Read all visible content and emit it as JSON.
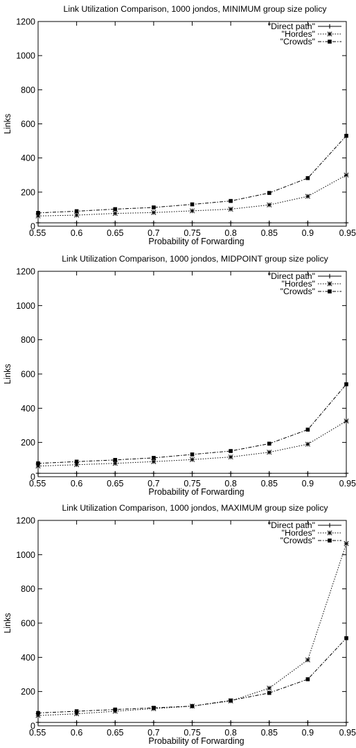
{
  "chart_data": [
    {
      "type": "line",
      "title": "Link Utilization Comparison, 1000 jondos, MINIMUM group size policy",
      "xlabel": "Probability of Forwarding",
      "ylabel": "Links",
      "x": [
        0.55,
        0.6,
        0.65,
        0.7,
        0.75,
        0.8,
        0.85,
        0.9,
        0.95
      ],
      "xlim": [
        0.55,
        0.95
      ],
      "ylim": [
        0,
        1200
      ],
      "xticks": [
        "0.55",
        "0.6",
        "0.65",
        "0.7",
        "0.75",
        "0.8",
        "0.85",
        "0.9",
        "0.95"
      ],
      "yticks": [
        "0",
        "200",
        "400",
        "600",
        "800",
        "1000",
        "1200"
      ],
      "legend_position": "top-right",
      "series": [
        {
          "name": "\"Direct path\"",
          "style": "solid",
          "marker": "plus",
          "values": [
            20,
            20,
            20,
            20,
            20,
            20,
            20,
            20,
            20
          ]
        },
        {
          "name": "\"Hordes\"",
          "style": "dotted",
          "marker": "cross",
          "values": [
            60,
            65,
            75,
            80,
            90,
            100,
            125,
            175,
            300
          ]
        },
        {
          "name": "\"Crowds\"",
          "style": "dashdot",
          "marker": "square",
          "values": [
            78,
            88,
            100,
            110,
            128,
            148,
            195,
            282,
            530
          ]
        }
      ]
    },
    {
      "type": "line",
      "title": "Link Utilization Comparison, 1000 jondos, MIDPOINT group size policy",
      "xlabel": "Probability of Forwarding",
      "ylabel": "Links",
      "x": [
        0.55,
        0.6,
        0.65,
        0.7,
        0.75,
        0.8,
        0.85,
        0.9,
        0.95
      ],
      "xlim": [
        0.55,
        0.95
      ],
      "ylim": [
        0,
        1200
      ],
      "xticks": [
        "0.55",
        "0.6",
        "0.65",
        "0.7",
        "0.75",
        "0.8",
        "0.85",
        "0.9",
        "0.95"
      ],
      "yticks": [
        "0",
        "200",
        "400",
        "600",
        "800",
        "1000",
        "1200"
      ],
      "legend_position": "top-right",
      "series": [
        {
          "name": "\"Direct path\"",
          "style": "solid",
          "marker": "plus",
          "values": [
            20,
            20,
            20,
            20,
            20,
            20,
            20,
            20,
            20
          ]
        },
        {
          "name": "\"Hordes\"",
          "style": "dotted",
          "marker": "cross",
          "values": [
            62,
            70,
            78,
            88,
            100,
            115,
            143,
            190,
            325
          ]
        },
        {
          "name": "\"Crowds\"",
          "style": "dashdot",
          "marker": "square",
          "values": [
            78,
            88,
            98,
            110,
            130,
            150,
            193,
            275,
            540
          ]
        }
      ]
    },
    {
      "type": "line",
      "title": "Link Utilization Comparison, 1000 jondos, MAXIMUM group size policy",
      "xlabel": "Probability of Forwarding",
      "ylabel": "Links",
      "x": [
        0.55,
        0.6,
        0.65,
        0.7,
        0.75,
        0.8,
        0.85,
        0.9,
        0.95
      ],
      "xlim": [
        0.55,
        0.95
      ],
      "ylim": [
        0,
        1200
      ],
      "xticks": [
        "0.55",
        "0.6",
        "0.65",
        "0.7",
        "0.75",
        "0.8",
        "0.85",
        "0.9",
        "0.95"
      ],
      "yticks": [
        "0",
        "200",
        "400",
        "600",
        "800",
        "1000",
        "1200"
      ],
      "legend_position": "top-right",
      "series": [
        {
          "name": "\"Direct path\"",
          "style": "solid",
          "marker": "plus",
          "values": [
            20,
            20,
            20,
            20,
            20,
            20,
            20,
            20,
            20
          ]
        },
        {
          "name": "\"Hordes\"",
          "style": "dotted",
          "marker": "cross",
          "values": [
            60,
            70,
            85,
            100,
            115,
            145,
            220,
            385,
            1065
          ]
        },
        {
          "name": "\"Crowds\"",
          "style": "dashdot",
          "marker": "square",
          "values": [
            75,
            85,
            95,
            105,
            115,
            148,
            192,
            272,
            512
          ]
        }
      ]
    }
  ]
}
